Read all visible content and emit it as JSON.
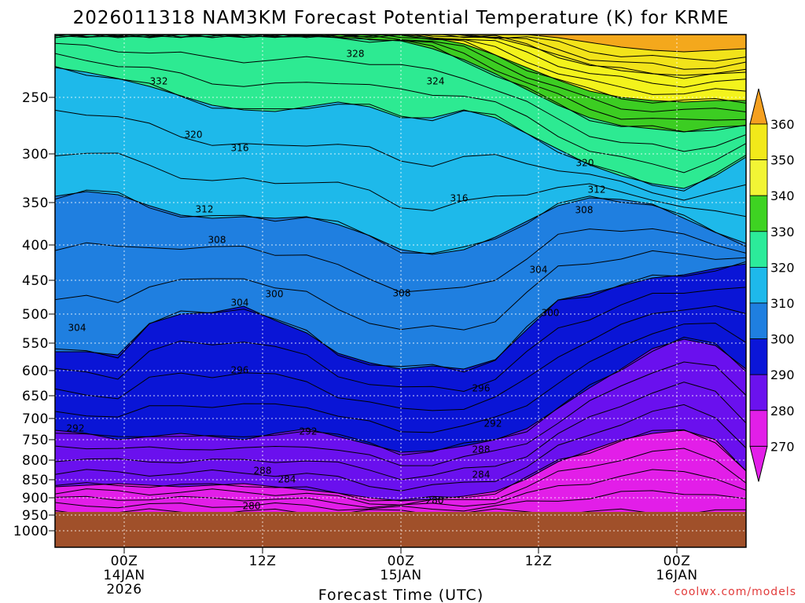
{
  "chart_data": {
    "type": "contour",
    "title": "2026011318 NAM3KM Forecast Potential Temperature (K) for KRME",
    "xlabel": "Forecast Time (UTC)",
    "ylabel": "",
    "y_ticks": [
      "250",
      "300",
      "350",
      "400",
      "450",
      "500",
      "550",
      "600",
      "650",
      "700",
      "750",
      "800",
      "850",
      "900",
      "950",
      "1000"
    ],
    "x_ticks": [
      {
        "label": "00Z",
        "sub1": "14JAN",
        "sub2": "2026"
      },
      {
        "label": "12Z",
        "sub1": "",
        "sub2": ""
      },
      {
        "label": "00Z",
        "sub1": "15JAN",
        "sub2": ""
      },
      {
        "label": "12Z",
        "sub1": "",
        "sub2": ""
      },
      {
        "label": "00Z",
        "sub1": "16JAN",
        "sub2": ""
      }
    ],
    "colorbar": {
      "levels": [
        "360",
        "350",
        "340",
        "330",
        "320",
        "310",
        "300",
        "290",
        "280",
        "270"
      ],
      "colors": [
        "#f4a81c",
        "#f2e31a",
        "#f3f31c",
        "#3ccd22",
        "#2dea92",
        "#1eb9ea",
        "#1f7fe0",
        "#0a15d6",
        "#6a10ee",
        "#e21ee8"
      ]
    },
    "contour_labels": [
      "328",
      "332",
      "324",
      "320",
      "316",
      "320",
      "312",
      "316",
      "312",
      "308",
      "308",
      "304",
      "300",
      "304",
      "308",
      "304",
      "300",
      "296",
      "296",
      "292",
      "292",
      "292",
      "288",
      "288",
      "284",
      "284",
      "280",
      "280"
    ],
    "ground_color": "#a0502a",
    "credit": "coolwx.com/models"
  }
}
